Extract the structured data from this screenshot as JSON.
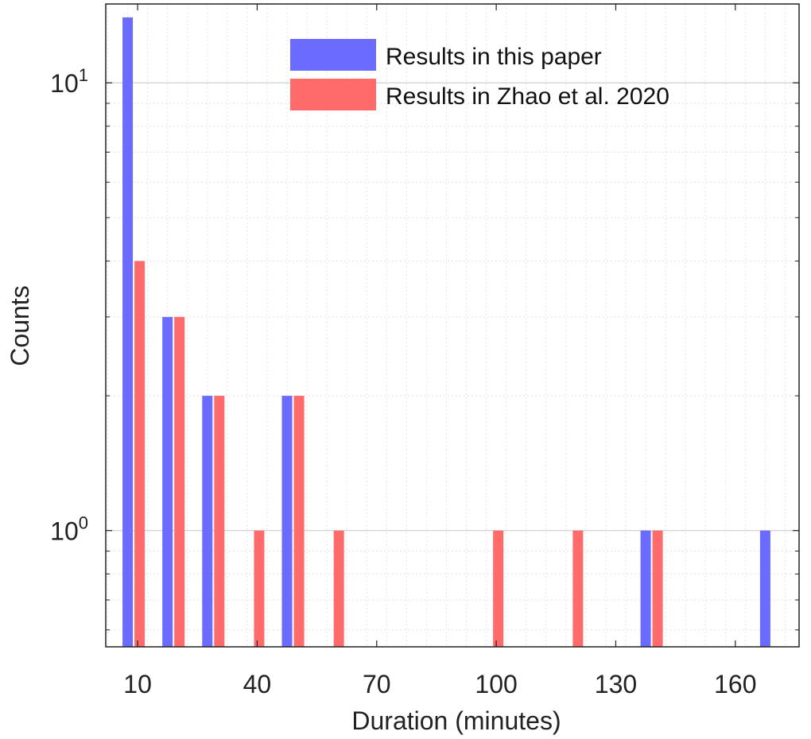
{
  "chart_data": {
    "type": "bar",
    "xlabel": "Duration (minutes)",
    "ylabel": "Counts",
    "x_ticks": [
      "10",
      "40",
      "70",
      "100",
      "130",
      "160"
    ],
    "x_tick_values": [
      10,
      40,
      70,
      100,
      130,
      160
    ],
    "xlim": [
      2,
      176
    ],
    "y_scale": "log",
    "ylim": [
      0.55,
      15
    ],
    "y_tick_labels": [
      {
        "value": 1,
        "base": "10",
        "exp": "0"
      },
      {
        "value": 10,
        "base": "10",
        "exp": "1"
      }
    ],
    "grid": true,
    "minor_grid": true,
    "legend_position": "top-right",
    "series": [
      {
        "name": "Results in this paper",
        "color": "#6b6bff",
        "points": [
          {
            "x": 7.5,
            "y": 14
          },
          {
            "x": 17.5,
            "y": 3
          },
          {
            "x": 27.5,
            "y": 2
          },
          {
            "x": 47.5,
            "y": 2
          },
          {
            "x": 137.5,
            "y": 1
          },
          {
            "x": 167.5,
            "y": 1
          }
        ]
      },
      {
        "name": "Results in Zhao et al. 2020",
        "color": "#ff6b6b",
        "points": [
          {
            "x": 10.5,
            "y": 4
          },
          {
            "x": 20.5,
            "y": 3
          },
          {
            "x": 30.5,
            "y": 2
          },
          {
            "x": 40.5,
            "y": 1
          },
          {
            "x": 50.5,
            "y": 2
          },
          {
            "x": 60.5,
            "y": 1
          },
          {
            "x": 100.5,
            "y": 1
          },
          {
            "x": 120.5,
            "y": 1
          },
          {
            "x": 140.5,
            "y": 1
          }
        ]
      }
    ]
  }
}
